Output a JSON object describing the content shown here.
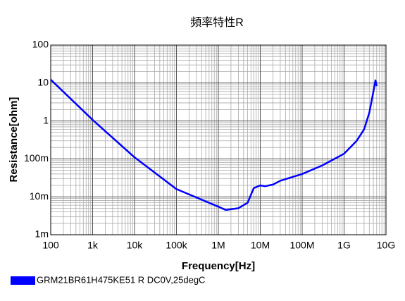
{
  "chart_data": {
    "type": "line",
    "title": "頻率特性R",
    "xlabel": "Frequency[Hz]",
    "ylabel": "Resistance[ohm]",
    "xscale": "log",
    "yscale": "log",
    "grid": true,
    "minor_grid": true,
    "legend": "bottom-left",
    "xlim": [
      100,
      10000000000
    ],
    "xticks": [
      100,
      {
        "value": 1000,
        "label": "1k"
      },
      {
        "value": 10000,
        "label": "10k"
      },
      {
        "value": 100000,
        "label": "100k"
      },
      {
        "value": 1000000,
        "label": "1M"
      },
      {
        "value": 10000000,
        "label": "10M"
      },
      {
        "value": 100000000,
        "label": "100M"
      },
      {
        "value": 1000000000,
        "label": "1G"
      },
      {
        "value": 10000000000,
        "label": "10G"
      }
    ],
    "ylim": [
      0.001,
      100
    ],
    "yticks": [
      {
        "value": 0.001,
        "label": "1m"
      },
      {
        "value": 0.01,
        "label": "10m"
      },
      {
        "value": 0.1,
        "label": "100m"
      },
      1,
      10,
      100
    ],
    "x": [
      100,
      1000,
      10000,
      100000,
      1000000,
      1500000,
      3000000,
      5000000,
      7000000,
      10000000,
      13000000,
      20000000,
      30000000,
      100000000,
      300000000,
      1000000000,
      2000000000,
      3000000000,
      4000000000,
      5000000000,
      5600000000,
      6000000000
    ],
    "series": [
      {
        "name": "GRM21BR61H475KE51 R DC0V,25degC",
        "color": "#0000ff",
        "values": [
          12.3,
          1.07,
          0.11,
          0.016,
          0.0055,
          0.0045,
          0.005,
          0.007,
          0.017,
          0.02,
          0.019,
          0.021,
          0.0265,
          0.04,
          0.067,
          0.137,
          0.3,
          0.6,
          1.64,
          5.9,
          11.8,
          8.3
        ]
      }
    ]
  }
}
